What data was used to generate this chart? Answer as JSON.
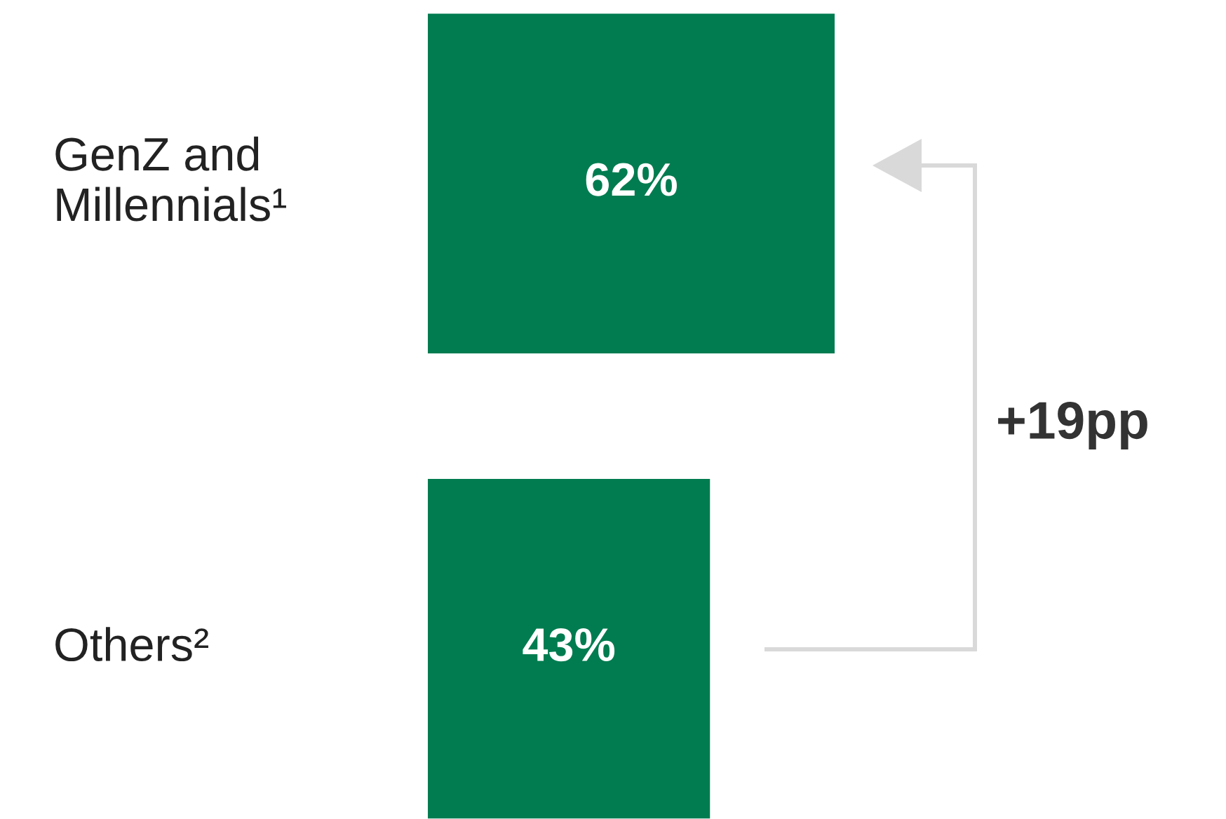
{
  "chart_data": {
    "type": "bar",
    "orientation": "horizontal",
    "categories": [
      "GenZ and\nMillennials¹",
      "Others²"
    ],
    "values": [
      62,
      43
    ],
    "color": "#007c50",
    "value_labels": [
      "62%",
      "43%"
    ],
    "annotations": [
      "+19pp"
    ],
    "tick_labels": "y"
  }
}
